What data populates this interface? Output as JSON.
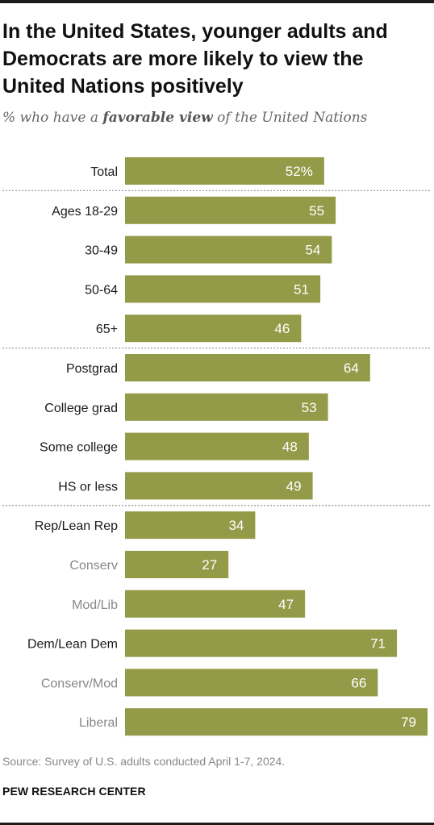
{
  "title": "In the United States, younger adults and Democrats are more likely to view the United Nations positively",
  "subtitle": {
    "before": "% who have a ",
    "emphasis": "favorable view",
    "after": " of the United Nations"
  },
  "source": "Source: Survey of U.S. adults conducted April 1-7, 2024.",
  "brand": "PEW RESEARCH CENTER",
  "colors": {
    "bar": "#949b48",
    "label_primary": "#1a1a1a",
    "label_sub": "#888888",
    "value_text": "#ffffff",
    "separator": "#999999"
  },
  "chart_data": {
    "type": "bar",
    "orientation": "horizontal",
    "categories": [
      "Total",
      "Ages 18-29",
      "30-49",
      "50-64",
      "65+",
      "Postgrad",
      "College grad",
      "Some college",
      "HS or less",
      "Rep/Lean Rep",
      "Conserv",
      "Mod/Lib",
      "Dem/Lean Dem",
      "Conserv/Mod",
      "Liberal"
    ],
    "values": [
      52,
      55,
      54,
      51,
      46,
      64,
      53,
      48,
      49,
      34,
      27,
      47,
      71,
      66,
      79
    ],
    "value_labels": [
      "52%",
      "55",
      "54",
      "51",
      "46",
      "64",
      "53",
      "48",
      "49",
      "34",
      "27",
      "47",
      "71",
      "66",
      "79"
    ],
    "subgroup": [
      false,
      false,
      false,
      false,
      false,
      false,
      false,
      false,
      false,
      false,
      true,
      true,
      false,
      true,
      true
    ],
    "group_breaks_after": [
      0,
      4,
      8
    ],
    "xlim": [
      0,
      79
    ],
    "grid": false,
    "legend": "none"
  }
}
